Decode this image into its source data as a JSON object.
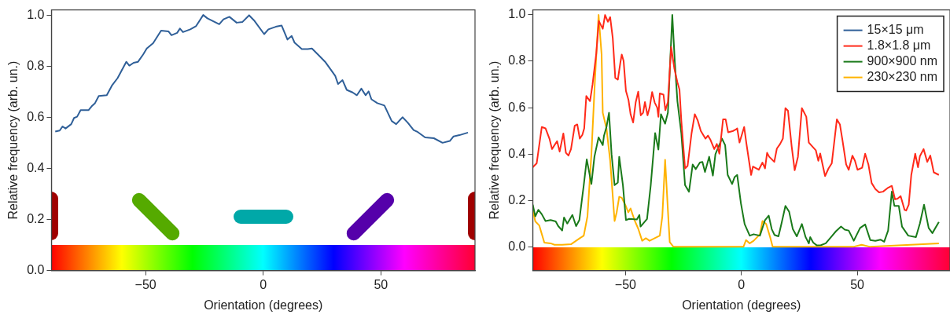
{
  "chart_data": [
    {
      "type": "line",
      "xlabel": "Orientation (degrees)",
      "ylabel": "Relative frequency (arb. un.)",
      "xlim": [
        -90,
        90
      ],
      "xticks": [
        {
          "value": -50,
          "label": "−50"
        },
        {
          "value": 0,
          "label": "0"
        },
        {
          "value": 50,
          "label": "50"
        }
      ],
      "ylim": [
        0,
        1.02
      ],
      "yticks": [
        {
          "value": 0,
          "label": "0.0"
        },
        {
          "value": 0.2,
          "label": "0.2"
        },
        {
          "value": 0.4,
          "label": "0.4"
        },
        {
          "value": 0.6,
          "label": "0.6"
        },
        {
          "value": 0.8,
          "label": "0.8"
        },
        {
          "value": 1,
          "label": "1.0"
        }
      ],
      "series": [
        {
          "color": "#2f5f98",
          "x": [
            -88.4,
            -86.5,
            -85.3,
            -84.0,
            -81.6,
            -80.4,
            -79.1,
            -77.6,
            -74.2,
            -72.9,
            -71.5,
            -69.9,
            -66.5,
            -64.3,
            -61.9,
            -58.2,
            -56.9,
            -55.1,
            -53.2,
            -51.0,
            -49.5,
            -46.8,
            -43.4,
            -40.3,
            -39.0,
            -36.6,
            -35.4,
            -34.1,
            -31.0,
            -28.6,
            -25.5,
            -23.7,
            -18.7,
            -16.9,
            -14.4,
            -11.3,
            -8.8,
            -6.0,
            -3.9,
            0.4,
            2.2,
            5.3,
            7.8,
            10.3,
            12.1,
            13.3,
            16.4,
            18.9,
            20.7,
            23.2,
            26.3,
            30.6,
            31.8,
            33.7,
            35.5,
            38.0,
            39.8,
            41.7,
            43.5,
            44.8,
            46.0,
            48.5,
            51.5,
            54.6,
            56.5,
            59.2,
            61.4,
            63.9,
            65.7,
            68.8,
            72.5,
            76.2,
            79.3,
            80.9,
            83.4,
            87.0
          ],
          "values": [
            0.544,
            0.548,
            0.564,
            0.556,
            0.573,
            0.597,
            0.602,
            0.628,
            0.628,
            0.643,
            0.655,
            0.683,
            0.686,
            0.724,
            0.753,
            0.817,
            0.802,
            0.813,
            0.817,
            0.846,
            0.869,
            0.89,
            0.939,
            0.936,
            0.921,
            0.93,
            0.947,
            0.933,
            0.944,
            0.956,
            1.0,
            0.987,
            0.964,
            0.983,
            0.993,
            0.97,
            0.973,
            0.999,
            0.979,
            0.925,
            0.944,
            0.954,
            0.959,
            0.904,
            0.918,
            0.892,
            0.867,
            0.867,
            0.869,
            0.846,
            0.817,
            0.762,
            0.73,
            0.745,
            0.707,
            0.697,
            0.686,
            0.712,
            0.686,
            0.701,
            0.67,
            0.655,
            0.646,
            0.585,
            0.573,
            0.6,
            0.579,
            0.55,
            0.542,
            0.521,
            0.518,
            0.5,
            0.507,
            0.525,
            0.53,
            0.54
          ]
        }
      ]
    },
    {
      "type": "line",
      "xlabel": "Orientation (degrees)",
      "ylabel": "Relative frequency (arb. un.)",
      "xlim": [
        -90,
        90
      ],
      "xticks": [
        {
          "value": -50,
          "label": "−50"
        },
        {
          "value": 0,
          "label": "0"
        },
        {
          "value": 50,
          "label": "50"
        }
      ],
      "ylim": [
        -0.1,
        1.02
      ],
      "yticks": [
        {
          "value": 0,
          "label": "0.0"
        },
        {
          "value": 0.2,
          "label": "0.2"
        },
        {
          "value": 0.4,
          "label": "0.4"
        },
        {
          "value": 0.6,
          "label": "0.6"
        },
        {
          "value": 0.8,
          "label": "0.8"
        },
        {
          "value": 1,
          "label": "1.0"
        }
      ],
      "legend": "top right",
      "series": [
        {
          "name": "15×15 μm",
          "color": "#2f5f98"
        },
        {
          "name": "1.8×1.8 μm",
          "color": "#ff2a1a",
          "x": [
            -90.0,
            -88.3,
            -86.1,
            -84.5,
            -82.8,
            -81.7,
            -79.5,
            -78.4,
            -76.8,
            -75.7,
            -74.6,
            -73.5,
            -71.9,
            -70.8,
            -69.7,
            -68.6,
            -67.8,
            -66.9,
            -65.3,
            -64.2,
            -62.6,
            -61.5,
            -59.8,
            -58.8,
            -57.6,
            -56.6,
            -55.5,
            -54.4,
            -53.3,
            -52.2,
            -51.6,
            -50.8,
            -49.8,
            -48.7,
            -47.8,
            -46.7,
            -45.6,
            -44.5,
            -43.4,
            -42.4,
            -41.6,
            -40.5,
            -39.6,
            -38.5,
            -37.4,
            -36.3,
            -35.8,
            -35.2,
            -33.6,
            -32.8,
            -31.7,
            -30.3,
            -28.9,
            -27.6,
            -26.7,
            -25.9,
            -24.3,
            -23.2,
            -21.5,
            -20.1,
            -18.8,
            -17.5,
            -15.5,
            -14.4,
            -13.3,
            -11.7,
            -10.6,
            -9.5,
            -7.9,
            -6.8,
            -5.7,
            -3.5,
            -2.4,
            -1.8,
            -0.8,
            1.2,
            2.2,
            4.2,
            5.0,
            7.5,
            9.1,
            10.2,
            11.1,
            12.0,
            14.2,
            15.3,
            16.7,
            17.9,
            19.0,
            20.1,
            21.7,
            23.0,
            24.4,
            26.1,
            28.0,
            29.1,
            32.1,
            33.2,
            34.0,
            36.1,
            37.6,
            39.0,
            41.2,
            42.5,
            43.6,
            45.2,
            46.3,
            47.9,
            49.0,
            50.1,
            52.1,
            53.4,
            54.8,
            56.2,
            57.8,
            59.4,
            61.1,
            63.3,
            64.9,
            66.3,
            67.4,
            68.7,
            70.4,
            71.1,
            72.2,
            73.3,
            75.0,
            76.2,
            77.0,
            78.6,
            80.2,
            81.5,
            83.0,
            85.2
          ],
          "values": [
            0.344,
            0.361,
            0.517,
            0.511,
            0.467,
            0.422,
            0.456,
            0.411,
            0.489,
            0.406,
            0.394,
            0.422,
            0.522,
            0.528,
            0.467,
            0.483,
            0.511,
            0.65,
            0.628,
            0.7,
            0.833,
            0.972,
            0.939,
            0.998,
            0.969,
            0.989,
            0.9,
            0.728,
            0.72,
            0.794,
            0.828,
            0.8,
            0.672,
            0.633,
            0.572,
            0.536,
            0.622,
            0.669,
            0.567,
            0.578,
            0.624,
            0.567,
            0.6,
            0.667,
            0.622,
            0.6,
            0.561,
            0.661,
            0.656,
            0.589,
            0.624,
            0.861,
            0.767,
            0.709,
            0.678,
            0.544,
            0.339,
            0.35,
            0.489,
            0.572,
            0.544,
            0.5,
            0.467,
            0.48,
            0.461,
            0.422,
            0.444,
            0.402,
            0.55,
            0.55,
            0.494,
            0.5,
            0.506,
            0.511,
            0.45,
            0.517,
            0.444,
            0.311,
            0.347,
            0.333,
            0.364,
            0.339,
            0.406,
            0.389,
            0.367,
            0.424,
            0.444,
            0.467,
            0.598,
            0.587,
            0.433,
            0.331,
            0.389,
            0.598,
            0.561,
            0.45,
            0.417,
            0.372,
            0.403,
            0.306,
            0.339,
            0.361,
            0.55,
            0.528,
            0.461,
            0.356,
            0.333,
            0.394,
            0.372,
            0.333,
            0.342,
            0.402,
            0.356,
            0.276,
            0.25,
            0.236,
            0.239,
            0.256,
            0.264,
            0.206,
            0.209,
            0.22,
            0.161,
            0.158,
            0.183,
            0.311,
            0.402,
            0.344,
            0.391,
            0.422,
            0.367,
            0.394,
            0.322,
            0.311
          ]
        },
        {
          "name": "900×900 nm",
          "color": "#1a7a1a",
          "x": [
            -90.0,
            -88.9,
            -87.6,
            -86.1,
            -84.5,
            -82.3,
            -80.1,
            -79.0,
            -77.3,
            -76.5,
            -75.1,
            -72.9,
            -71.3,
            -69.9,
            -68.0,
            -66.7,
            -64.7,
            -63.4,
            -61.6,
            -59.8,
            -59.3,
            -58.2,
            -57.1,
            -56.0,
            -54.7,
            -53.3,
            -52.7,
            -51.1,
            -49.8,
            -48.4,
            -45.1,
            -44.0,
            -43.5,
            -40.7,
            -39.1,
            -37.2,
            -35.8,
            -34.7,
            -32.9,
            -31.7,
            -29.8,
            -28.7,
            -27.6,
            -25.9,
            -24.3,
            -22.6,
            -21.0,
            -19.7,
            -17.9,
            -16.8,
            -15.7,
            -13.9,
            -12.3,
            -11.2,
            -8.4,
            -7.0,
            -5.9,
            -4.0,
            -2.9,
            -1.8,
            -0.2,
            1.4,
            3.6,
            5.3,
            8.0,
            10.2,
            11.8,
            13.1,
            14.3,
            16.0,
            17.3,
            19.0,
            20.6,
            22.2,
            23.9,
            26.1,
            27.7,
            29.1,
            29.7,
            31.0,
            32.6,
            34.3,
            36.4,
            39.2,
            40.8,
            43.0,
            44.6,
            46.3,
            48.5,
            51.2,
            53.4,
            55.6,
            57.8,
            60.0,
            61.6,
            63.3,
            64.9,
            66.0,
            67.9,
            69.3,
            72.0,
            75.3,
            77.0,
            78.8,
            80.8,
            82.4,
            85.2
          ],
          "values": [
            0.183,
            0.133,
            0.161,
            0.142,
            0.113,
            0.117,
            0.111,
            0.091,
            0.072,
            0.128,
            0.102,
            0.139,
            0.091,
            0.117,
            0.267,
            0.378,
            0.272,
            0.389,
            0.472,
            0.439,
            0.478,
            0.517,
            0.578,
            0.4,
            0.267,
            0.278,
            0.389,
            0.267,
            0.117,
            0.122,
            0.12,
            0.139,
            0.089,
            0.122,
            0.267,
            0.491,
            0.42,
            0.572,
            0.531,
            0.578,
            0.998,
            0.794,
            0.628,
            0.489,
            0.267,
            0.239,
            0.356,
            0.336,
            0.364,
            0.367,
            0.324,
            0.389,
            0.308,
            0.4,
            0.467,
            0.439,
            0.311,
            0.272,
            0.302,
            0.311,
            0.189,
            0.1,
            0.05,
            0.056,
            0.05,
            0.117,
            0.136,
            0.078,
            0.053,
            0.047,
            0.102,
            0.178,
            0.153,
            0.078,
            0.047,
            0.1,
            0.044,
            0.017,
            0.044,
            0.02,
            0.008,
            0.009,
            0.017,
            0.05,
            0.069,
            0.089,
            0.076,
            0.072,
            0.028,
            0.083,
            0.098,
            0.031,
            0.028,
            0.033,
            0.024,
            0.072,
            0.239,
            0.178,
            0.178,
            0.089,
            0.05,
            0.044,
            0.102,
            0.183,
            0.083,
            0.061,
            0.109
          ]
        },
        {
          "name": "230×230 nm",
          "color": "#ffb300",
          "x": [
            -90.0,
            -88.9,
            -87.2,
            -85.0,
            -82.3,
            -80.6,
            -77.3,
            -73.5,
            -71.3,
            -69.7,
            -68.0,
            -66.4,
            -64.7,
            -63.1,
            -61.6,
            -60.3,
            -59.8,
            -58.2,
            -56.6,
            -54.7,
            -53.8,
            -52.7,
            -51.6,
            -49.9,
            -48.8,
            -47.8,
            -46.1,
            -44.5,
            -42.8,
            -41.2,
            -39.6,
            -37.4,
            -35.2,
            -34.1,
            -32.9,
            -31.4,
            -30.9,
            -29.3,
            -5.7,
            0.9,
            2.0,
            3.6,
            5.3,
            8.0,
            9.1,
            10.7,
            12.4,
            13.5,
            48.2,
            51.9,
            55.6,
            85.2
          ],
          "values": [
            0.161,
            0.111,
            0.094,
            0.02,
            0.017,
            0.011,
            0.011,
            0.013,
            0.028,
            0.039,
            0.05,
            0.133,
            0.4,
            0.733,
            0.998,
            0.828,
            0.578,
            0.511,
            0.372,
            0.113,
            0.15,
            0.217,
            0.213,
            0.178,
            0.15,
            0.167,
            0.117,
            0.08,
            0.028,
            0.039,
            0.028,
            0.039,
            0.05,
            0.133,
            0.376,
            0.106,
            0.022,
            0.002,
            0.002,
            0.002,
            0.031,
            0.017,
            0.028,
            0.056,
            0.113,
            0.1,
            0.044,
            0.002,
            0.002,
            0.011,
            0.002,
            0.017
          ]
        }
      ]
    }
  ]
}
